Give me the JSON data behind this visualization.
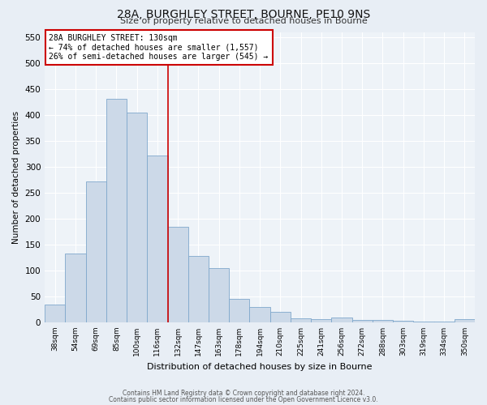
{
  "title": "28A, BURGHLEY STREET, BOURNE, PE10 9NS",
  "subtitle": "Size of property relative to detached houses in Bourne",
  "xlabel": "Distribution of detached houses by size in Bourne",
  "ylabel": "Number of detached properties",
  "categories": [
    "38sqm",
    "54sqm",
    "69sqm",
    "85sqm",
    "100sqm",
    "116sqm",
    "132sqm",
    "147sqm",
    "163sqm",
    "178sqm",
    "194sqm",
    "210sqm",
    "225sqm",
    "241sqm",
    "256sqm",
    "272sqm",
    "288sqm",
    "303sqm",
    "319sqm",
    "334sqm",
    "350sqm"
  ],
  "bar_heights": [
    35,
    133,
    272,
    432,
    405,
    322,
    184,
    128,
    104,
    45,
    30,
    20,
    7,
    6,
    9,
    4,
    4,
    3,
    1,
    1,
    6
  ],
  "bar_color": "#ccd9e8",
  "bar_edge_color": "#7fa8cc",
  "vline_x_index": 6,
  "vline_color": "#cc0000",
  "annotation_line1": "28A BURGHLEY STREET: 130sqm",
  "annotation_line2": "← 74% of detached houses are smaller (1,557)",
  "annotation_line3": "26% of semi-detached houses are larger (545) →",
  "annotation_box_color": "#ffffff",
  "annotation_box_edge": "#cc0000",
  "ylim": [
    0,
    560
  ],
  "yticks": [
    0,
    50,
    100,
    150,
    200,
    250,
    300,
    350,
    400,
    450,
    500,
    550
  ],
  "bg_color": "#e8eef5",
  "plot_bg_color": "#eef3f8",
  "grid_color": "#ffffff",
  "title_fontsize": 10,
  "subtitle_fontsize": 8,
  "footer_line1": "Contains HM Land Registry data © Crown copyright and database right 2024.",
  "footer_line2": "Contains public sector information licensed under the Open Government Licence v3.0."
}
